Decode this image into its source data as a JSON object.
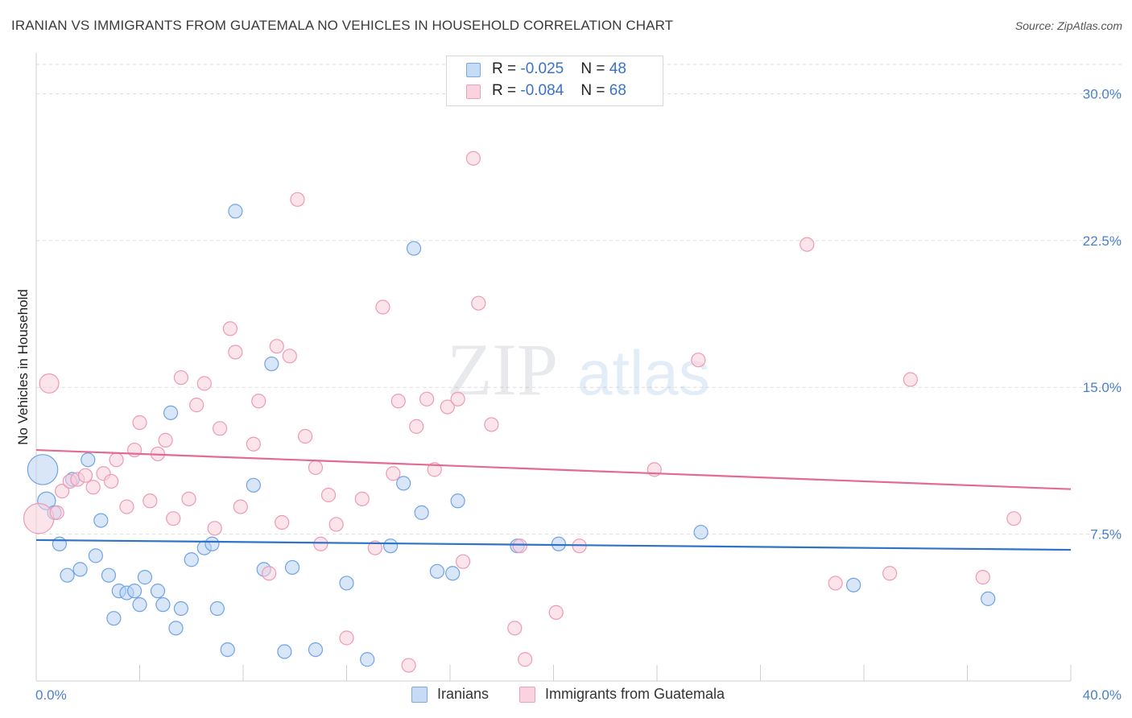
{
  "title": "IRANIAN VS IMMIGRANTS FROM GUATEMALA NO VEHICLES IN HOUSEHOLD CORRELATION CHART",
  "source": "Source: ZipAtlas.com",
  "watermark": {
    "zip": "ZIP",
    "atlas": "atlas"
  },
  "legend": {
    "rows": [
      {
        "r_label": "R = ",
        "r_value": "-0.025",
        "n_label": "N = ",
        "n_value": "48",
        "color": "#a9c8f0"
      },
      {
        "r_label": "R = ",
        "r_value": "-0.084",
        "n_label": "N = ",
        "n_value": "68",
        "color": "#f6b9cc"
      }
    ]
  },
  "bottom_legend": [
    "Iranians",
    "Immigrants from Guatemala"
  ],
  "chart_data": {
    "type": "scatter",
    "ylabel": "No Vehicles in Household",
    "xlabel": "",
    "xlim": [
      0,
      40
    ],
    "ylim": [
      0,
      30
    ],
    "x_tick_labels": [
      "0.0%",
      "40.0%"
    ],
    "y_ticks": [
      7.5,
      15.0,
      22.5,
      30.0
    ],
    "y_tick_labels": [
      "7.5%",
      "15.0%",
      "22.5%",
      "30.0%"
    ],
    "grid": true,
    "legend_position": "top-center",
    "series": [
      {
        "name": "Iranians",
        "color": "#6fa3e6",
        "fill": "#b8d2f3",
        "trend": {
          "x": [
            0,
            40
          ],
          "y": [
            7.2,
            6.7
          ],
          "color": "#2f73c9"
        },
        "points": [
          {
            "x": 0.25,
            "y": 10.8,
            "s": 2.2
          },
          {
            "x": 0.4,
            "y": 9.2,
            "s": 1.3
          },
          {
            "x": 0.7,
            "y": 8.6
          },
          {
            "x": 0.9,
            "y": 7.0
          },
          {
            "x": 1.2,
            "y": 5.4
          },
          {
            "x": 1.4,
            "y": 10.3
          },
          {
            "x": 1.7,
            "y": 5.7
          },
          {
            "x": 2.0,
            "y": 11.3
          },
          {
            "x": 2.3,
            "y": 6.4
          },
          {
            "x": 2.5,
            "y": 8.2
          },
          {
            "x": 2.8,
            "y": 5.4
          },
          {
            "x": 3.0,
            "y": 3.2
          },
          {
            "x": 3.2,
            "y": 4.6
          },
          {
            "x": 3.5,
            "y": 4.5
          },
          {
            "x": 3.8,
            "y": 4.6
          },
          {
            "x": 4.0,
            "y": 3.9
          },
          {
            "x": 4.2,
            "y": 5.3
          },
          {
            "x": 4.7,
            "y": 4.6
          },
          {
            "x": 4.9,
            "y": 3.9
          },
          {
            "x": 5.2,
            "y": 13.7
          },
          {
            "x": 5.4,
            "y": 2.7
          },
          {
            "x": 5.6,
            "y": 3.7
          },
          {
            "x": 6.0,
            "y": 6.2
          },
          {
            "x": 6.5,
            "y": 6.8
          },
          {
            "x": 6.8,
            "y": 7.0
          },
          {
            "x": 7.0,
            "y": 3.7
          },
          {
            "x": 7.7,
            "y": 24.0
          },
          {
            "x": 7.4,
            "y": 1.6
          },
          {
            "x": 8.4,
            "y": 10.0
          },
          {
            "x": 8.8,
            "y": 5.7
          },
          {
            "x": 9.1,
            "y": 16.2
          },
          {
            "x": 9.6,
            "y": 1.5
          },
          {
            "x": 9.9,
            "y": 5.8
          },
          {
            "x": 10.8,
            "y": 1.6
          },
          {
            "x": 12.0,
            "y": 5.0
          },
          {
            "x": 12.8,
            "y": 1.1
          },
          {
            "x": 13.7,
            "y": 6.9
          },
          {
            "x": 14.2,
            "y": 10.1
          },
          {
            "x": 14.6,
            "y": 22.1
          },
          {
            "x": 14.9,
            "y": 8.6
          },
          {
            "x": 15.5,
            "y": 5.6
          },
          {
            "x": 16.1,
            "y": 5.5
          },
          {
            "x": 16.3,
            "y": 9.2
          },
          {
            "x": 18.6,
            "y": 6.9
          },
          {
            "x": 20.2,
            "y": 7.0
          },
          {
            "x": 25.7,
            "y": 7.6
          },
          {
            "x": 31.6,
            "y": 4.9
          },
          {
            "x": 36.8,
            "y": 4.2
          }
        ]
      },
      {
        "name": "Immigrants from Guatemala",
        "color": "#ee9ab5",
        "fill": "#f9cdda",
        "trend": {
          "x": [
            0,
            40
          ],
          "y": [
            11.8,
            9.8
          ],
          "color": "#e46a94"
        },
        "points": [
          {
            "x": 0.1,
            "y": 8.3,
            "s": 2.2
          },
          {
            "x": 0.5,
            "y": 15.2,
            "s": 1.4
          },
          {
            "x": 0.8,
            "y": 8.6
          },
          {
            "x": 1.0,
            "y": 9.7
          },
          {
            "x": 1.3,
            "y": 10.2
          },
          {
            "x": 1.6,
            "y": 10.3
          },
          {
            "x": 1.9,
            "y": 10.5
          },
          {
            "x": 2.2,
            "y": 9.9
          },
          {
            "x": 2.6,
            "y": 10.6
          },
          {
            "x": 2.9,
            "y": 10.2
          },
          {
            "x": 3.1,
            "y": 11.3
          },
          {
            "x": 3.5,
            "y": 8.9
          },
          {
            "x": 3.8,
            "y": 11.8
          },
          {
            "x": 4.0,
            "y": 13.2
          },
          {
            "x": 4.4,
            "y": 9.2
          },
          {
            "x": 4.7,
            "y": 11.6
          },
          {
            "x": 5.0,
            "y": 12.3
          },
          {
            "x": 5.3,
            "y": 8.3
          },
          {
            "x": 5.6,
            "y": 15.5
          },
          {
            "x": 5.9,
            "y": 9.3
          },
          {
            "x": 6.2,
            "y": 14.1
          },
          {
            "x": 6.5,
            "y": 15.2
          },
          {
            "x": 6.9,
            "y": 7.8
          },
          {
            "x": 7.1,
            "y": 12.9
          },
          {
            "x": 7.5,
            "y": 18.0
          },
          {
            "x": 7.7,
            "y": 16.8
          },
          {
            "x": 7.9,
            "y": 8.9
          },
          {
            "x": 8.4,
            "y": 12.1
          },
          {
            "x": 8.6,
            "y": 14.3
          },
          {
            "x": 9.0,
            "y": 5.5
          },
          {
            "x": 9.3,
            "y": 17.1
          },
          {
            "x": 9.5,
            "y": 8.1
          },
          {
            "x": 9.8,
            "y": 16.6
          },
          {
            "x": 10.1,
            "y": 24.6
          },
          {
            "x": 10.4,
            "y": 12.5
          },
          {
            "x": 10.8,
            "y": 10.9
          },
          {
            "x": 11.0,
            "y": 7.0
          },
          {
            "x": 11.3,
            "y": 9.5
          },
          {
            "x": 11.6,
            "y": 8.0
          },
          {
            "x": 12.0,
            "y": 2.2
          },
          {
            "x": 12.6,
            "y": 9.3
          },
          {
            "x": 13.1,
            "y": 6.8
          },
          {
            "x": 13.4,
            "y": 19.1
          },
          {
            "x": 13.8,
            "y": 10.6
          },
          {
            "x": 14.0,
            "y": 14.3
          },
          {
            "x": 14.4,
            "y": 0.8
          },
          {
            "x": 14.7,
            "y": 13.0
          },
          {
            "x": 15.1,
            "y": 14.4
          },
          {
            "x": 15.4,
            "y": 10.8
          },
          {
            "x": 15.9,
            "y": 14.0
          },
          {
            "x": 16.3,
            "y": 14.4
          },
          {
            "x": 16.5,
            "y": 6.1
          },
          {
            "x": 16.9,
            "y": 26.7
          },
          {
            "x": 17.1,
            "y": 19.3
          },
          {
            "x": 17.6,
            "y": 13.1
          },
          {
            "x": 18.5,
            "y": 2.7
          },
          {
            "x": 18.7,
            "y": 6.9
          },
          {
            "x": 18.9,
            "y": 1.1
          },
          {
            "x": 20.1,
            "y": 3.5
          },
          {
            "x": 21.0,
            "y": 6.9
          },
          {
            "x": 23.9,
            "y": 10.8
          },
          {
            "x": 25.6,
            "y": 16.4
          },
          {
            "x": 29.8,
            "y": 22.3
          },
          {
            "x": 30.9,
            "y": 5.0
          },
          {
            "x": 33.0,
            "y": 5.5
          },
          {
            "x": 33.8,
            "y": 15.4
          },
          {
            "x": 36.6,
            "y": 5.3
          },
          {
            "x": 37.8,
            "y": 8.3
          }
        ]
      }
    ]
  }
}
